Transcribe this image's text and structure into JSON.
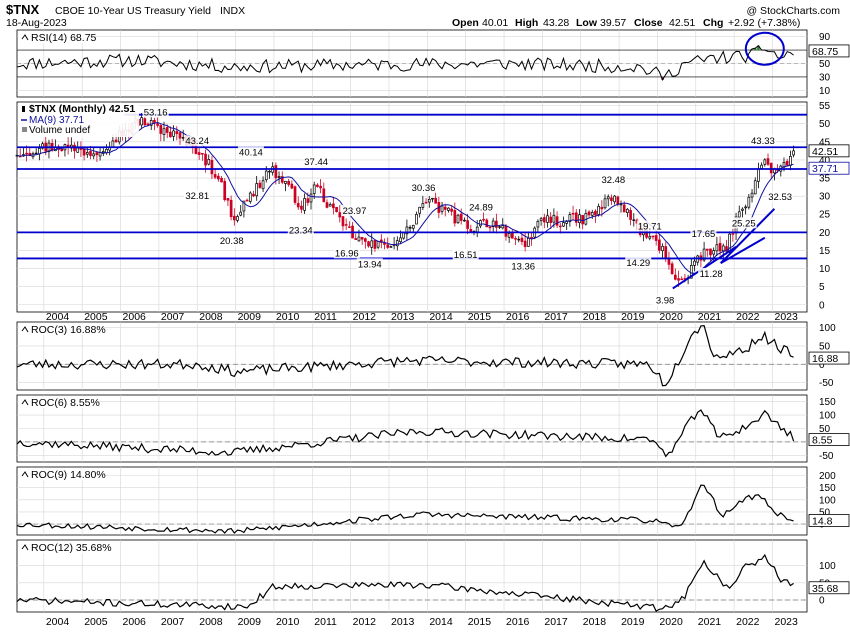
{
  "header": {
    "symbol": "$TNX",
    "name": "CBOE 10-Year US Treasury Yield",
    "exchange": "INDX",
    "date": "18-Aug-2023",
    "ohlc": {
      "open_label": "Open",
      "open": "40.01",
      "high_label": "High",
      "high": "43.28",
      "low_label": "Low",
      "low": "39.57",
      "close_label": "Close",
      "close": "42.51",
      "chg_label": "Chg",
      "chg": "+2.92 (+7.38%)"
    },
    "credit": "@ StockCharts.com"
  },
  "colors": {
    "up": "#000000",
    "down": "#cc0022",
    "ma": "#1010a0",
    "annotation": "#0000cc",
    "grid": "#d6d6d6",
    "rsi_fill": "#2e7d2e",
    "rsi_low_fill": "#a33333"
  },
  "chart_data": [
    {
      "type": "line",
      "name": "RSI(14)",
      "legend": "RSI(14) 68.75",
      "ylim": [
        0,
        100
      ],
      "yticks": [
        10,
        30,
        50,
        70,
        90
      ],
      "reference_lines": [
        30,
        70
      ],
      "last_value": 68.75,
      "seed": 11,
      "amplitude": 10,
      "x": [
        2003.3,
        2006.4,
        2008.9,
        2012.0,
        2016.0,
        2019.5,
        2020.2,
        2020.7,
        2021.5,
        2022.5,
        2022.8,
        2023.2,
        2023.62
      ],
      "values": [
        50,
        55,
        45,
        48,
        50,
        45,
        30,
        50,
        58,
        62,
        75,
        58,
        68.75
      ]
    },
    {
      "type": "candlestick",
      "name": "$TNX (Monthly)",
      "legend": "$TNX (Monthly) 42.51",
      "ma_legend": "MA(9) 37.71",
      "volume_legend": "Volume undef",
      "ylim": [
        -2,
        56
      ],
      "yticks": [
        0,
        5,
        10,
        15,
        20,
        25,
        30,
        35,
        40,
        45,
        50,
        55
      ],
      "last_value": 42.51,
      "ma_value": 37.71,
      "x_axis": {
        "start": 2003.3,
        "end": 2023.9,
        "labels": [
          "2004",
          "2005",
          "2006",
          "2007",
          "2008",
          "2009",
          "2010",
          "2011",
          "2012",
          "2013",
          "2014",
          "2015",
          "2016",
          "2017",
          "2018",
          "2019",
          "2020",
          "2021",
          "2022",
          "2023"
        ]
      },
      "anchors_x": [
        2003.3,
        2004.3,
        2005.3,
        2006.5,
        2007.2,
        2008.0,
        2008.5,
        2008.95,
        2009.4,
        2009.9,
        2010.3,
        2010.75,
        2011.1,
        2011.7,
        2012.2,
        2012.6,
        2013.0,
        2013.4,
        2013.95,
        2014.6,
        2015.1,
        2015.5,
        2015.9,
        2016.55,
        2016.95,
        2017.5,
        2018.2,
        2018.85,
        2019.6,
        2020.1,
        2020.55,
        2020.8,
        2021.25,
        2021.75,
        2022.1,
        2022.8,
        2023.1,
        2023.3,
        2023.62
      ],
      "anchors_y": [
        42,
        44,
        42,
        51,
        48,
        43,
        36,
        24,
        30,
        38,
        33,
        27,
        33,
        23,
        18,
        16,
        17,
        19,
        29,
        25,
        21,
        23,
        22,
        15,
        24,
        23,
        24,
        30,
        20,
        16,
        6,
        8,
        15,
        15,
        24,
        40,
        36,
        38,
        42.51
      ],
      "annotations": [
        {
          "label": "53.16",
          "x": 2006.5,
          "y": 53.16,
          "pos": "right"
        },
        {
          "label": "43.24",
          "x": 2008.0,
          "y": 43.24,
          "pos": "above"
        },
        {
          "label": "40.14",
          "x": 2009.4,
          "y": 40.14,
          "pos": "above"
        },
        {
          "label": "37.44",
          "x": 2011.1,
          "y": 37.44,
          "pos": "above"
        },
        {
          "label": "32.81",
          "x": 2008.0,
          "y": 32.81,
          "pos": "below"
        },
        {
          "label": "23.97",
          "x": 2012.1,
          "y": 23.97,
          "pos": "above"
        },
        {
          "label": "23.34",
          "x": 2010.7,
          "y": 23.34,
          "pos": "below"
        },
        {
          "label": "20.38",
          "x": 2008.9,
          "y": 20.38,
          "pos": "below"
        },
        {
          "label": "16.96",
          "x": 2011.9,
          "y": 16.96,
          "pos": "below"
        },
        {
          "label": "30.36",
          "x": 2013.9,
          "y": 30.36,
          "pos": "above"
        },
        {
          "label": "13.94",
          "x": 2012.5,
          "y": 13.94,
          "pos": "below"
        },
        {
          "label": "24.89",
          "x": 2015.4,
          "y": 24.89,
          "pos": "above"
        },
        {
          "label": "16.51",
          "x": 2015.0,
          "y": 16.51,
          "pos": "below"
        },
        {
          "label": "13.36",
          "x": 2016.5,
          "y": 13.36,
          "pos": "below"
        },
        {
          "label": "32.48",
          "x": 2018.85,
          "y": 32.48,
          "pos": "above"
        },
        {
          "label": "19.71",
          "x": 2019.8,
          "y": 19.71,
          "pos": "above"
        },
        {
          "label": "14.29",
          "x": 2019.5,
          "y": 14.29,
          "pos": "below"
        },
        {
          "label": "3.98",
          "x": 2020.2,
          "y": 3.98,
          "pos": "below"
        },
        {
          "label": "17.65",
          "x": 2021.2,
          "y": 17.65,
          "pos": "above"
        },
        {
          "label": "11.28",
          "x": 2021.4,
          "y": 11.28,
          "pos": "below"
        },
        {
          "label": "25.25",
          "x": 2022.25,
          "y": 25.25,
          "pos": "below"
        },
        {
          "label": "43.33",
          "x": 2022.75,
          "y": 43.33,
          "pos": "above"
        },
        {
          "label": "32.53",
          "x": 2023.2,
          "y": 32.53,
          "pos": "below"
        }
      ],
      "horizontal_lines": [
        {
          "y": 52.5,
          "x_start": 2006.1,
          "x_end": 2023.9
        },
        {
          "y": 43.5,
          "x_start": 2003.3,
          "x_end": 2023.9
        },
        {
          "y": 37.5,
          "x_start": 2003.3,
          "x_end": 2023.9
        },
        {
          "y": 20.0,
          "x_start": 2003.3,
          "x_end": 2023.9
        },
        {
          "y": 12.8,
          "x_start": 2003.3,
          "x_end": 2023.9
        }
      ],
      "trend_lines": [
        {
          "x1": 2020.4,
          "y1": 4.5,
          "x2": 2022.05,
          "y2": 16
        },
        {
          "x1": 2021.65,
          "y1": 11.5,
          "x2": 2022.8,
          "y2": 18.5
        },
        {
          "x1": 2021.65,
          "y1": 11.5,
          "x2": 2023.05,
          "y2": 26.5
        }
      ]
    },
    {
      "type": "line",
      "name": "ROC(3)",
      "legend": "ROC(3) 16.88%",
      "ylim": [
        -70,
        115
      ],
      "yticks": [
        -50,
        0,
        50,
        100
      ],
      "zero_line": true,
      "last_value": 16.88,
      "seed": 23,
      "amplitude": 14,
      "x": [
        2003.3,
        2008.0,
        2009.0,
        2013.5,
        2019.8,
        2020.2,
        2020.6,
        2020.9,
        2021.2,
        2021.5,
        2022.3,
        2022.7,
        2023.62
      ],
      "values": [
        0,
        0,
        -20,
        10,
        0,
        -55,
        20,
        90,
        105,
        20,
        40,
        80,
        16.88
      ]
    },
    {
      "type": "line",
      "name": "ROC(6)",
      "legend": "ROC(6) 8.55%",
      "ylim": [
        -75,
        175
      ],
      "yticks": [
        -50,
        0,
        50,
        100,
        150
      ],
      "zero_line": true,
      "last_value": 8.55,
      "seed": 37,
      "amplitude": 16,
      "x": [
        2003.3,
        2008.9,
        2013.7,
        2019.8,
        2020.3,
        2020.7,
        2021.1,
        2021.6,
        2022.3,
        2022.8,
        2023.62
      ],
      "values": [
        0,
        -40,
        40,
        10,
        -50,
        40,
        130,
        15,
        55,
        105,
        8.55
      ]
    },
    {
      "type": "line",
      "name": "ROC(9)",
      "legend": "ROC(9) 14.80%",
      "ylim": [
        -45,
        235
      ],
      "yticks": [
        0,
        50,
        100,
        150,
        200
      ],
      "zero_line": true,
      "last_value": 14.8,
      "seed": 53,
      "amplitude": 12,
      "x": [
        2003.3,
        2009.0,
        2013.8,
        2019.9,
        2020.5,
        2020.9,
        2021.15,
        2021.7,
        2022.2,
        2022.7,
        2023.0,
        2023.62
      ],
      "values": [
        0,
        -30,
        40,
        15,
        -20,
        60,
        180,
        30,
        100,
        120,
        50,
        14.8
      ]
    },
    {
      "type": "line",
      "name": "ROC(12)",
      "legend": "ROC(12) 35.68%",
      "ylim": [
        -35,
        175
      ],
      "yticks": [
        0,
        50,
        100
      ],
      "zero_line": true,
      "last_value": 35.68,
      "seed": 71,
      "amplitude": 10,
      "x": [
        2003.3,
        2009.3,
        2010.0,
        2013.9,
        2020.2,
        2020.7,
        2021.2,
        2021.9,
        2022.3,
        2022.85,
        2023.2,
        2023.62
      ],
      "values": [
        0,
        -20,
        40,
        45,
        -25,
        10,
        110,
        30,
        100,
        125,
        60,
        35.68
      ]
    }
  ]
}
